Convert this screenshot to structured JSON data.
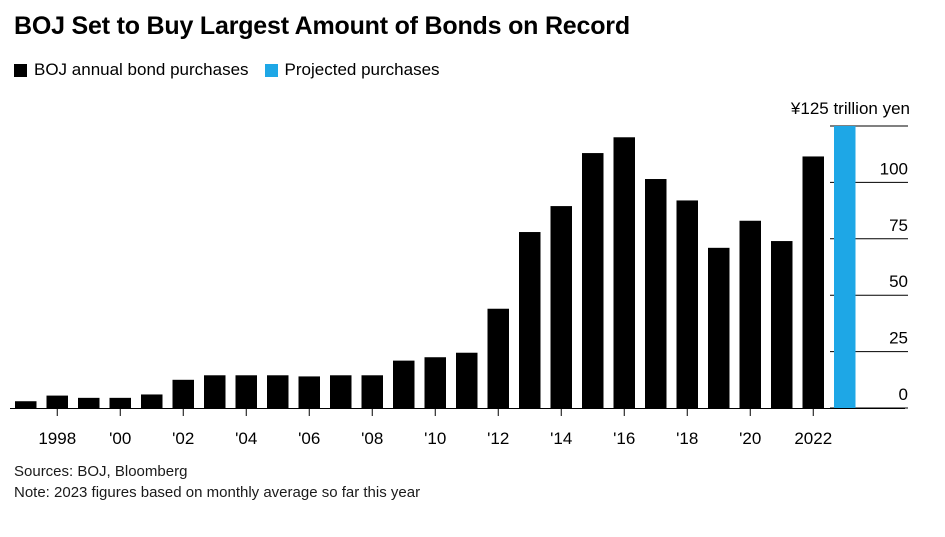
{
  "title": "BOJ Set to Buy Largest Amount of Bonds on Record",
  "legend": [
    {
      "label": "BOJ annual bond purchases",
      "color": "#000000"
    },
    {
      "label": "Projected purchases",
      "color": "#1ea7e6"
    }
  ],
  "footer": {
    "sources": "Sources: BOJ, Bloomberg",
    "note": "Note: 2023 figures based on monthly average so far this year"
  },
  "chart_data": {
    "type": "bar",
    "unit_label": "¥125 trillion yen",
    "categories": [
      "1997",
      "1998",
      "1999",
      "2000",
      "2001",
      "2002",
      "2003",
      "2004",
      "2005",
      "2006",
      "2007",
      "2008",
      "2009",
      "2010",
      "2011",
      "2012",
      "2013",
      "2014",
      "2015",
      "2016",
      "2017",
      "2018",
      "2019",
      "2020",
      "2021",
      "2022",
      "2023"
    ],
    "x_tick_labels": [
      "1998",
      "'00",
      "'02",
      "'04",
      "'06",
      "'08",
      "'10",
      "'12",
      "'14",
      "'16",
      "'18",
      "'20",
      "2022"
    ],
    "x_tick_years": [
      "1998",
      "2000",
      "2002",
      "2004",
      "2006",
      "2008",
      "2010",
      "2012",
      "2014",
      "2016",
      "2018",
      "2020",
      "2022"
    ],
    "series": [
      {
        "name": "BOJ annual bond purchases",
        "color": "#000000",
        "values": [
          3,
          5.5,
          4.5,
          4.5,
          6,
          12.5,
          14.5,
          14.5,
          14.5,
          14,
          14.5,
          14.5,
          21,
          22.5,
          24.5,
          44,
          78,
          89.5,
          113,
          120,
          101.5,
          92,
          71,
          83,
          74,
          111.5,
          null
        ]
      },
      {
        "name": "Projected purchases",
        "color": "#1ea7e6",
        "values": [
          null,
          null,
          null,
          null,
          null,
          null,
          null,
          null,
          null,
          null,
          null,
          null,
          null,
          null,
          null,
          null,
          null,
          null,
          null,
          null,
          null,
          null,
          null,
          null,
          null,
          null,
          125
        ]
      }
    ],
    "y_ticks": [
      0,
      25,
      50,
      75,
      100
    ],
    "ylim": [
      0,
      125
    ],
    "grid": true,
    "legend_position": "top-left"
  }
}
